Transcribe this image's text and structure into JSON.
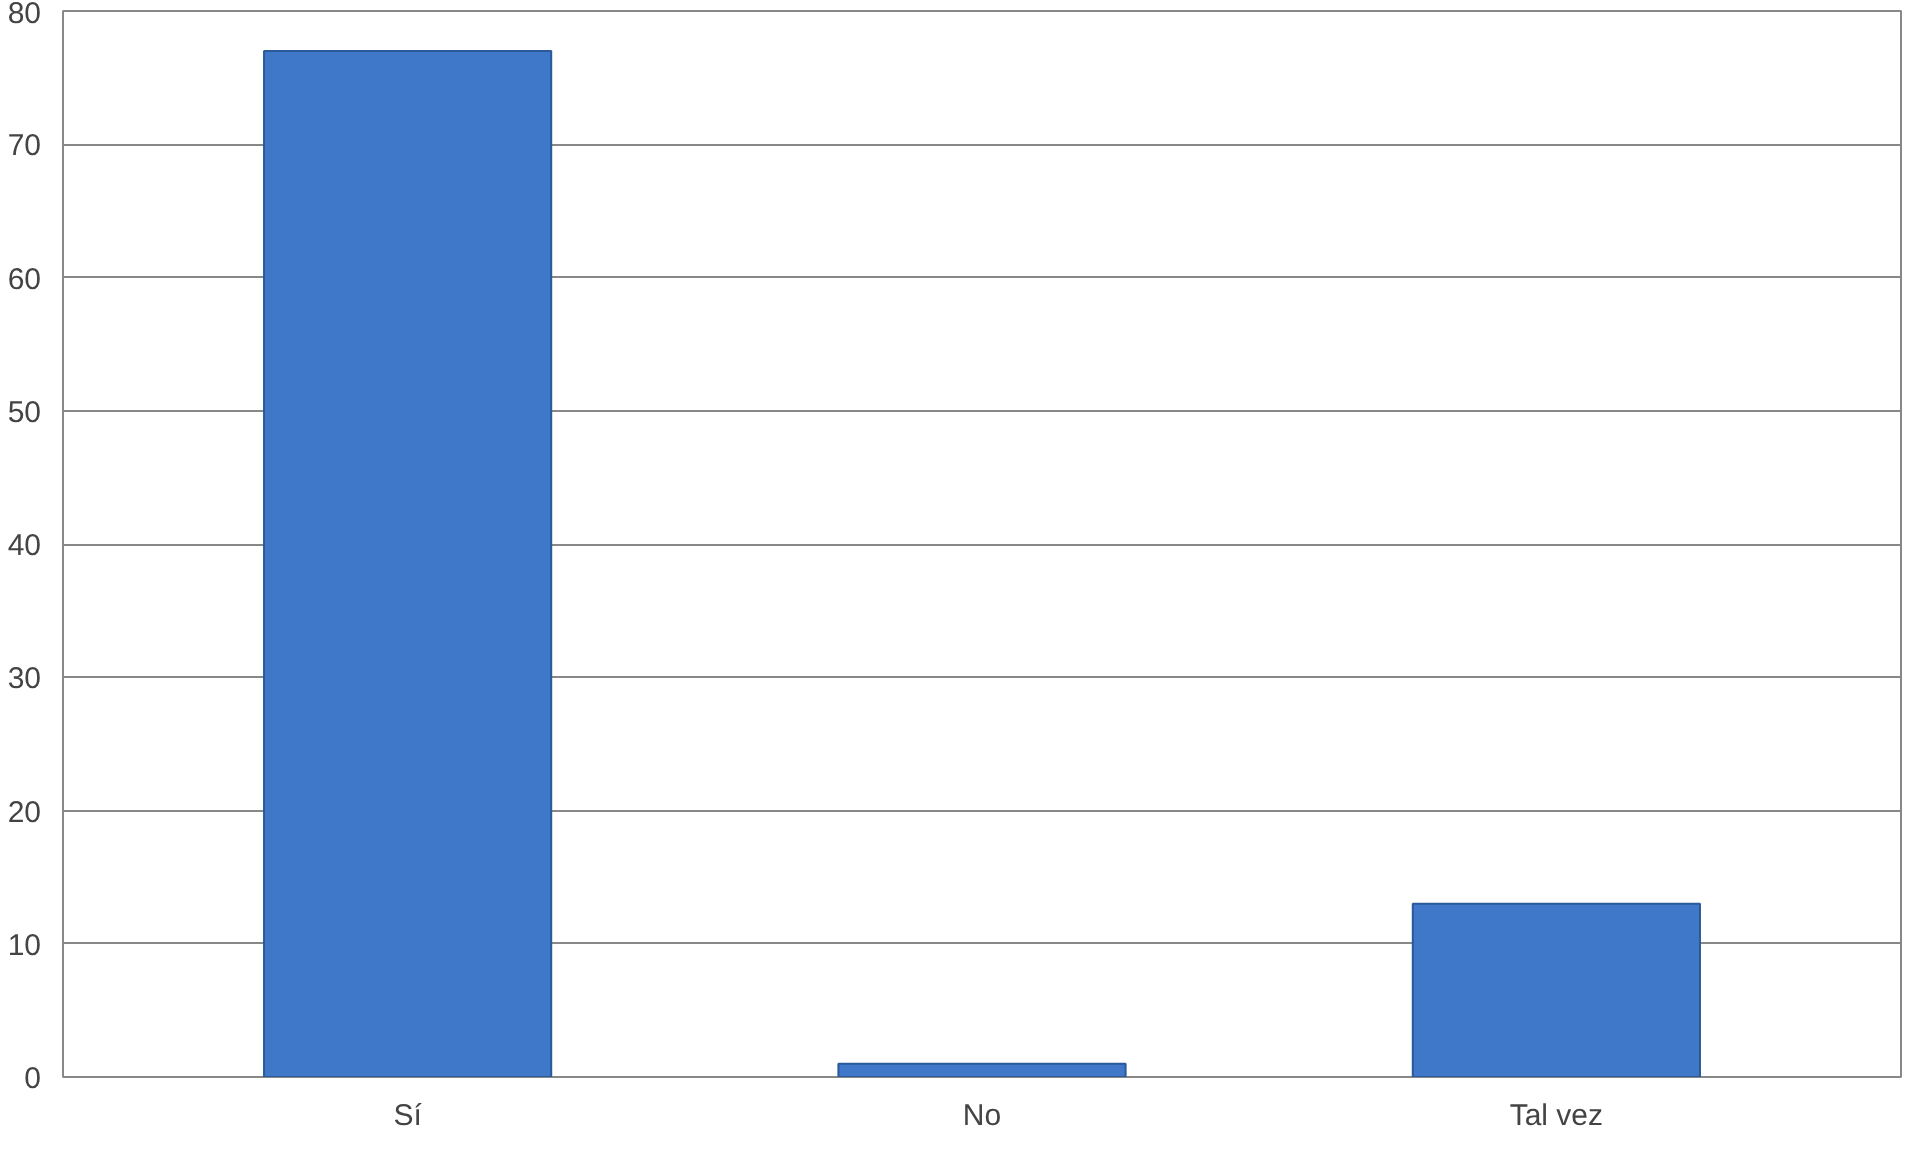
{
  "chart_data": {
    "type": "bar",
    "categories": [
      "Sí",
      "No",
      "Tal vez"
    ],
    "values": [
      77,
      1,
      13
    ],
    "color": "#3f78c8",
    "ylim": [
      0,
      80
    ],
    "yticks": [
      0,
      10,
      20,
      30,
      40,
      50,
      60,
      70,
      80
    ],
    "grid": "y"
  }
}
